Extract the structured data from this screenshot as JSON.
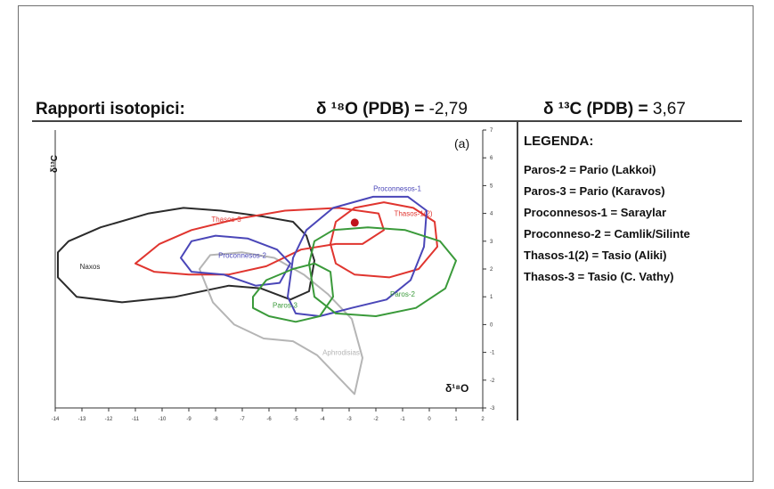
{
  "header": {
    "title": "Rapporti isotopici:",
    "o_label": "δ ¹⁸O (PDB) =",
    "o_value": "-2,79",
    "c_label": "δ ¹³C (PDB) =",
    "c_value": "3,67"
  },
  "legend": {
    "title": "LEGENDA:",
    "items": [
      "Paros-2 = Pario (Lakkoi)",
      "Paros-3 = Pario (Karavos)",
      "Proconnesos-1 = Saraylar",
      "Proconneso-2 = Camlik/Silinte",
      "Thasos-1(2) = Tasio (Aliki)",
      "Thasos-3  = Tasio (C. Vathy)"
    ]
  },
  "plot": {
    "panel_label": "(a)",
    "y_axis_label": "δ¹³C",
    "x_axis_label": "δ¹⁸O",
    "x_ticks": [
      "-14",
      "-13",
      "-12",
      "-11",
      "-10",
      "-9",
      "-8",
      "-7",
      "-6",
      "-5",
      "-4",
      "-3",
      "-2",
      "-1",
      "0",
      "1",
      "2"
    ],
    "y_ticks": [
      "7",
      "6",
      "5",
      "4",
      "3",
      "2",
      "1",
      "0",
      "-1",
      "-2",
      "-3"
    ],
    "xlim": [
      -14,
      2
    ],
    "ylim": [
      -3,
      7
    ],
    "colors": {
      "naxos": "#2b2b2b",
      "aphrodisias": "#b5b5b5",
      "thasos": "#e0352f",
      "proconnesos": "#4a46b8",
      "paros": "#3a9a3a",
      "sample": "#c0141b"
    },
    "sample_point": {
      "x": -2.79,
      "y": 3.67
    },
    "fields": [
      {
        "name": "Naxos",
        "color_key": "naxos",
        "points": [
          [
            -13.9,
            2.6
          ],
          [
            -13.5,
            3.0
          ],
          [
            -12.3,
            3.5
          ],
          [
            -10.5,
            4.0
          ],
          [
            -9.2,
            4.2
          ],
          [
            -7.8,
            4.1
          ],
          [
            -6.3,
            3.9
          ],
          [
            -5.1,
            3.7
          ],
          [
            -4.6,
            3.2
          ],
          [
            -4.3,
            2.3
          ],
          [
            -4.5,
            1.2
          ],
          [
            -5.2,
            0.9
          ],
          [
            -6.3,
            1.3
          ],
          [
            -7.5,
            1.4
          ],
          [
            -9.5,
            1.0
          ],
          [
            -11.5,
            0.8
          ],
          [
            -13.2,
            1.0
          ],
          [
            -13.9,
            1.7
          ]
        ],
        "label_pos": [
          -12.7,
          2.0
        ]
      },
      {
        "name": "Aphrodisias",
        "color_key": "aphrodisias",
        "points": [
          [
            -8.6,
            2.0
          ],
          [
            -8.2,
            2.5
          ],
          [
            -7.0,
            2.6
          ],
          [
            -5.8,
            2.4
          ],
          [
            -4.7,
            1.8
          ],
          [
            -3.8,
            1.1
          ],
          [
            -2.9,
            0.2
          ],
          [
            -2.5,
            -1.2
          ],
          [
            -2.8,
            -2.5
          ],
          [
            -3.4,
            -1.9
          ],
          [
            -4.2,
            -1.1
          ],
          [
            -5.1,
            -0.6
          ],
          [
            -6.2,
            -0.5
          ],
          [
            -7.3,
            0.0
          ],
          [
            -8.1,
            0.8
          ]
        ],
        "label_pos": [
          -3.3,
          -1.1
        ]
      },
      {
        "name": "Thasos-3",
        "color_key": "thasos",
        "points": [
          [
            -11.0,
            2.2
          ],
          [
            -10.1,
            2.9
          ],
          [
            -8.9,
            3.4
          ],
          [
            -7.2,
            3.8
          ],
          [
            -5.4,
            4.1
          ],
          [
            -3.4,
            4.2
          ],
          [
            -1.9,
            4.0
          ],
          [
            -1.7,
            3.4
          ],
          [
            -2.5,
            2.9
          ],
          [
            -3.5,
            2.9
          ],
          [
            -4.8,
            2.7
          ],
          [
            -6.1,
            2.1
          ],
          [
            -7.5,
            1.8
          ],
          [
            -9.0,
            1.8
          ],
          [
            -10.3,
            1.9
          ]
        ],
        "label_pos": [
          -7.6,
          3.7
        ]
      },
      {
        "name": "Thasos-1(2)",
        "color_key": "thasos",
        "points": [
          [
            -3.7,
            2.9
          ],
          [
            -3.5,
            3.7
          ],
          [
            -2.8,
            4.2
          ],
          [
            -1.7,
            4.4
          ],
          [
            -0.6,
            4.2
          ],
          [
            0.2,
            3.7
          ],
          [
            0.3,
            2.8
          ],
          [
            -0.4,
            2.0
          ],
          [
            -1.5,
            1.7
          ],
          [
            -2.8,
            1.8
          ],
          [
            -3.5,
            2.2
          ]
        ],
        "label_pos": [
          -0.6,
          3.9
        ]
      },
      {
        "name": "Proconnesos-2",
        "color_key": "proconnesos",
        "points": [
          [
            -9.3,
            2.4
          ],
          [
            -8.9,
            3.0
          ],
          [
            -8.0,
            3.2
          ],
          [
            -6.8,
            3.1
          ],
          [
            -5.7,
            2.7
          ],
          [
            -5.2,
            2.2
          ],
          [
            -5.6,
            1.5
          ],
          [
            -6.5,
            1.4
          ],
          [
            -7.7,
            1.8
          ],
          [
            -8.9,
            1.9
          ]
        ],
        "label_pos": [
          -7.0,
          2.4
        ]
      },
      {
        "name": "Proconnesos-1",
        "color_key": "proconnesos",
        "points": [
          [
            -5.3,
            1.0
          ],
          [
            -5.1,
            2.4
          ],
          [
            -4.6,
            3.4
          ],
          [
            -3.6,
            4.2
          ],
          [
            -2.1,
            4.6
          ],
          [
            -0.8,
            4.6
          ],
          [
            -0.1,
            4.1
          ],
          [
            -0.2,
            2.8
          ],
          [
            -0.7,
            1.6
          ],
          [
            -1.6,
            0.9
          ],
          [
            -2.9,
            0.6
          ],
          [
            -4.1,
            0.3
          ],
          [
            -5.0,
            0.4
          ]
        ],
        "label_pos": [
          -1.2,
          4.8
        ]
      },
      {
        "name": "Paros-2",
        "color_key": "paros",
        "points": [
          [
            -4.5,
            2.2
          ],
          [
            -4.3,
            3.0
          ],
          [
            -3.6,
            3.4
          ],
          [
            -2.3,
            3.5
          ],
          [
            -0.9,
            3.4
          ],
          [
            0.4,
            3.0
          ],
          [
            1.0,
            2.3
          ],
          [
            0.6,
            1.3
          ],
          [
            -0.5,
            0.6
          ],
          [
            -2.0,
            0.3
          ],
          [
            -3.5,
            0.4
          ],
          [
            -4.3,
            1.0
          ]
        ],
        "label_pos": [
          -1.0,
          1.0
        ]
      },
      {
        "name": "Paros-3",
        "color_key": "paros",
        "points": [
          [
            -6.6,
            1.0
          ],
          [
            -6.1,
            1.6
          ],
          [
            -5.1,
            2.0
          ],
          [
            -4.3,
            2.2
          ],
          [
            -3.7,
            1.9
          ],
          [
            -3.6,
            1.0
          ],
          [
            -4.1,
            0.3
          ],
          [
            -5.0,
            0.1
          ],
          [
            -6.0,
            0.3
          ],
          [
            -6.6,
            0.6
          ]
        ],
        "label_pos": [
          -5.4,
          0.6
        ]
      }
    ]
  }
}
